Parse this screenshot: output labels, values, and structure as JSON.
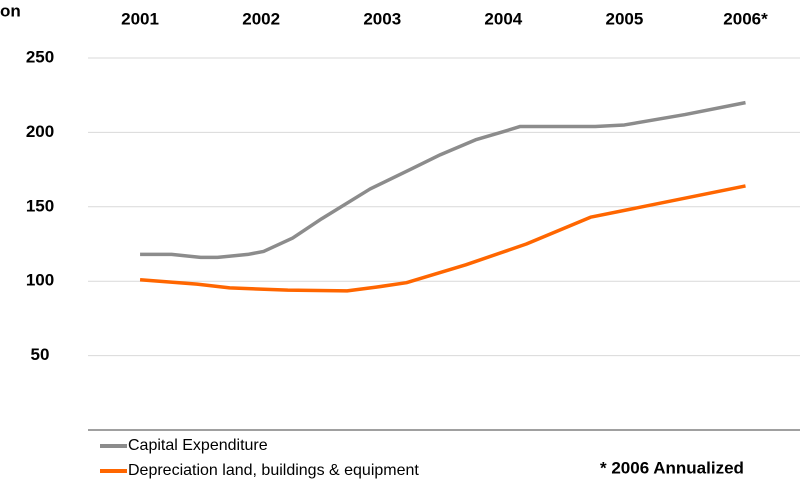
{
  "chart_data": {
    "type": "line",
    "title": "on",
    "xlim": [
      2000.57,
      2006.45
    ],
    "xticks": [
      2001,
      2002,
      2003,
      2004,
      2005,
      {
        "value": 2006,
        "label": "2006*"
      }
    ],
    "ylim": [
      0,
      250
    ],
    "yticks": [
      50,
      100,
      150,
      200,
      250
    ],
    "grid": true,
    "legend": "bottom-left",
    "annotation": "* 2006 Annualized",
    "series": [
      {
        "name": "Capital Expenditure",
        "color": "#8c8c8c",
        "x": [
          2001,
          2001.26,
          2001.5,
          2001.64,
          2001.89,
          2002.02,
          2002.26,
          2002.5,
          2002.9,
          2003.23,
          2003.48,
          2003.77,
          2004.02,
          2004.14,
          2004.31,
          2004.76,
          2005,
          2005.5,
          2006
        ],
        "values": [
          118,
          118,
          116,
          116,
          118,
          120,
          129,
          142,
          162,
          175,
          185,
          195,
          201,
          204,
          204,
          204,
          205,
          212,
          220
        ]
      },
      {
        "name": "Depreciation land, buildings & equipment",
        "color": "#ff6600",
        "x": [
          2001,
          2001.47,
          2001.74,
          2002.22,
          2002.71,
          2002.95,
          2003.2,
          2003.69,
          2004.19,
          2004.72,
          2006
        ],
        "values": [
          101,
          98,
          95.5,
          94,
          93.5,
          96,
          99,
          111,
          125,
          143,
          164
        ]
      }
    ]
  }
}
